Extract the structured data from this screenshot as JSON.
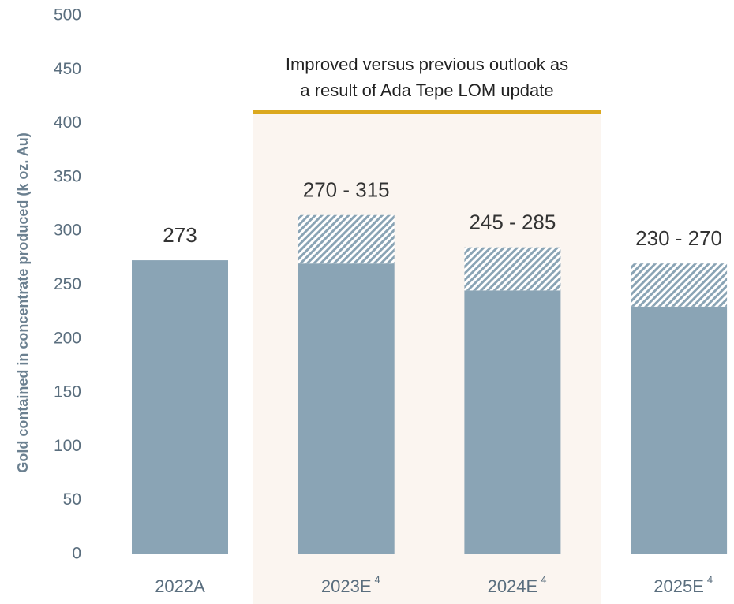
{
  "chart_data": {
    "type": "range_bar",
    "y_label": "Gold contained in concentrate produced (k oz. Au)",
    "categories": [
      "2022A",
      "2023E",
      "2024E",
      "2025E"
    ],
    "category_notes": [
      null,
      "4",
      "4",
      "4"
    ],
    "low": [
      273,
      270,
      245,
      230
    ],
    "high": [
      null,
      315,
      285,
      270
    ],
    "value_labels": [
      "273",
      "270 - 315",
      "245 - 285",
      "230 - 270"
    ],
    "color": "#8aa4b5",
    "ylim": [
      0,
      500
    ],
    "yticks": [
      0,
      50,
      100,
      150,
      200,
      250,
      300,
      350,
      400,
      450,
      500
    ],
    "annotation": {
      "lines": [
        "Improved versus previous outlook as",
        "a result of Ada Tepe LOM update"
      ],
      "color": "#dba81e"
    }
  }
}
